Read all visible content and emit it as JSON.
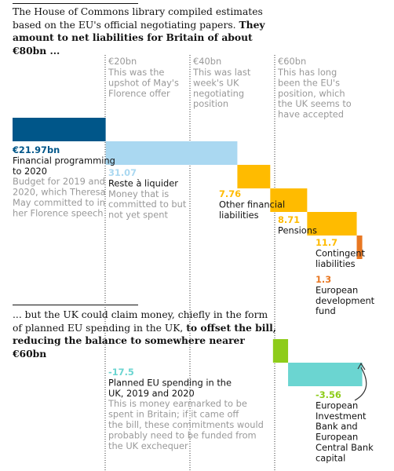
{
  "intro": {
    "plain": "The House of Commons library compiled estimates based on the EU's official negotiating papers.",
    "bold": "They amount to net liabilities for Britain of about €80bn ..."
  },
  "references": [
    {
      "value_label": "€20bn",
      "text": "This was the upshot of May's Florence offer",
      "value": 20
    },
    {
      "value_label": "€40bn",
      "text": "This was last week's UK negotiating position",
      "value": 40
    },
    {
      "value_label": "€60bn",
      "text": "This has long been the EU's position, which the UK seems to have accepted",
      "value": 60
    }
  ],
  "chart_data": {
    "type": "waterfall",
    "unit": "€bn",
    "items": [
      {
        "label": "€21.97bn",
        "name": "Financial programming to 2020",
        "value": 21.97,
        "description": "Budget for 2019 and 2020, which Theresa May committed to in her Florence speech",
        "color": "#005689"
      },
      {
        "label": "31.07",
        "name": "Reste à liquider",
        "value": 31.07,
        "description": "Money that is committed to but not yet spent",
        "color": "#aad8f1"
      },
      {
        "label": "7.76",
        "name": "Other financial liabilities",
        "value": 7.76,
        "description": "",
        "color": "#ffbb00"
      },
      {
        "label": "8.71",
        "name": "Pensions",
        "value": 8.71,
        "description": "",
        "color": "#ffbb00"
      },
      {
        "label": "11.7",
        "name": "Contingent liabilities",
        "value": 11.7,
        "description": "",
        "color": "#ffbb00"
      },
      {
        "label": "1.3",
        "name": "European development fund",
        "value": 1.3,
        "description": "",
        "color": "#e87722"
      },
      {
        "label": "-17.5",
        "name": "Planned EU spending in the UK, 2019 and 2020",
        "value": -17.5,
        "description": "This is money earmarked to be spent in Britain; if it came off the bill, these commitments would probably need to be funded from the UK exchequer",
        "color": "#6bd5d1"
      },
      {
        "label": "-3.56",
        "name": "European Investment Bank and European Central Bank capital",
        "value": -3.56,
        "description": "",
        "color": "#8ecc1a"
      }
    ]
  },
  "middle_text": {
    "plain": "... but the UK could claim money, chiefly in the form of planned EU spending in the UK,",
    "bold": "to offset the bill, reducing the balance to somewhere nearer €60bn"
  }
}
